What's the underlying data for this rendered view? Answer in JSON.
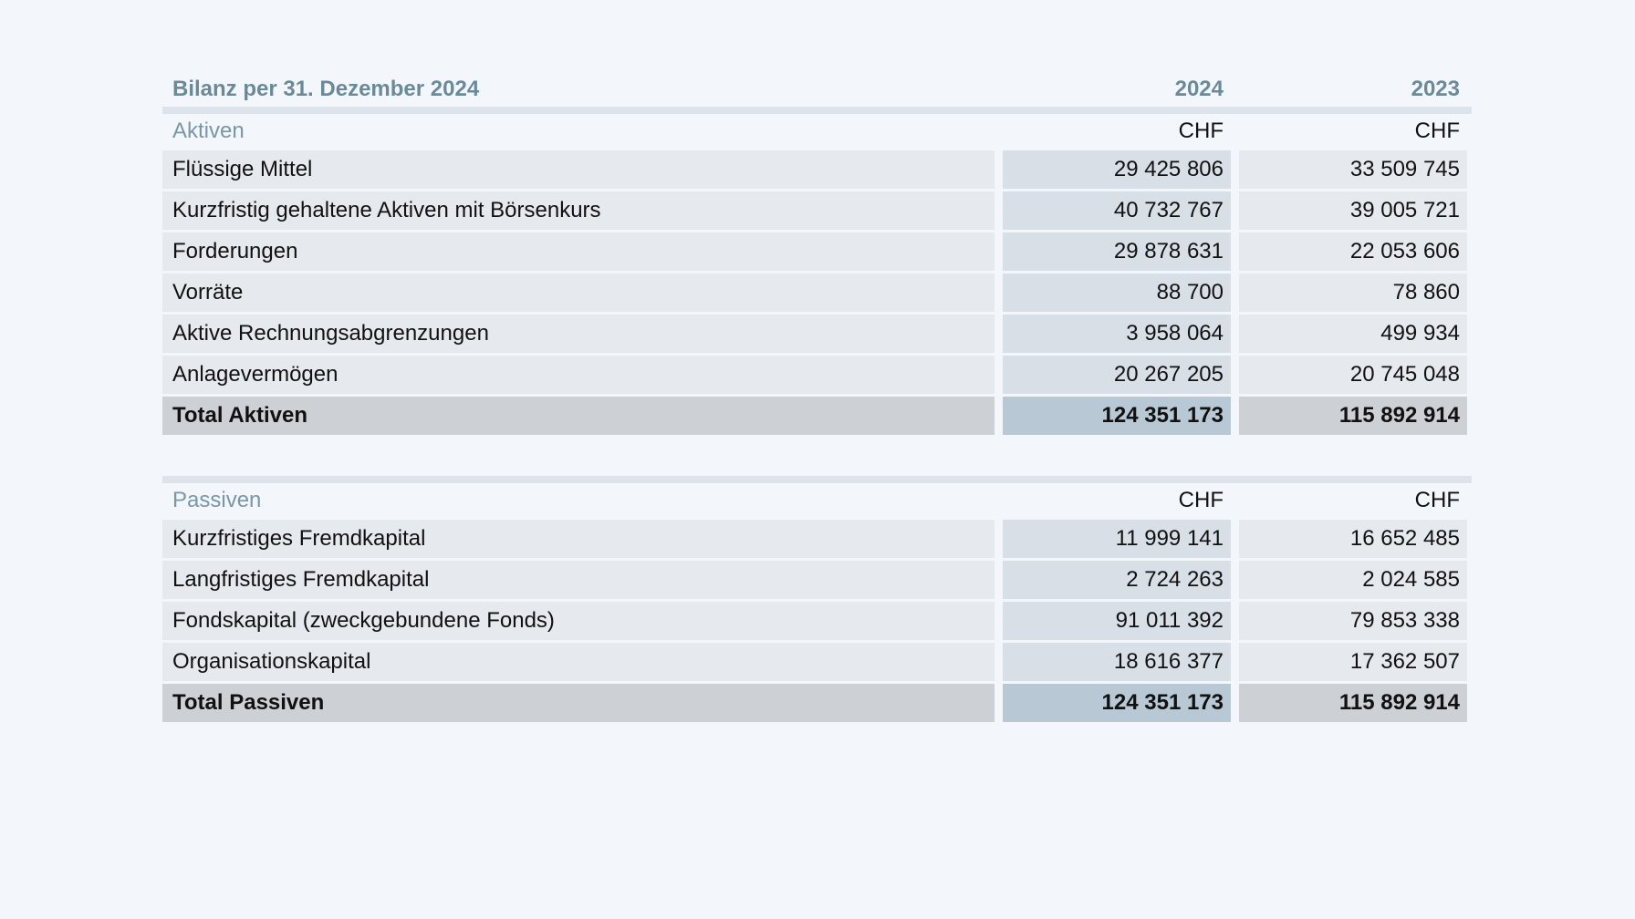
{
  "title": "Bilanz per 31. Dezember 2024",
  "years": [
    "2024",
    "2023"
  ],
  "aktiven": {
    "label": "Aktiven",
    "currency": [
      "CHF",
      "CHF"
    ],
    "rows": [
      {
        "label": "Flüssige Mittel",
        "y2024": "29 425 806",
        "y2023": "33 509 745"
      },
      {
        "label": "Kurzfristig gehaltene Aktiven mit Börsenkurs",
        "y2024": "40 732 767",
        "y2023": "39 005 721"
      },
      {
        "label": "Forderungen",
        "y2024": "29 878 631",
        "y2023": "22 053 606"
      },
      {
        "label": "Vorräte",
        "y2024": "88 700",
        "y2023": "78 860"
      },
      {
        "label": "Aktive Rechnungsabgrenzungen",
        "y2024": "3 958 064",
        "y2023": "499 934"
      },
      {
        "label": "Anlagevermögen",
        "y2024": "20 267 205",
        "y2023": "20 745 048"
      }
    ],
    "total": {
      "label": "Total Aktiven",
      "y2024": "124 351 173",
      "y2023": "115 892 914"
    }
  },
  "passiven": {
    "label": "Passiven",
    "currency": [
      "CHF",
      "CHF"
    ],
    "rows": [
      {
        "label": "Kurzfristiges Fremdkapital",
        "y2024": "11 999 141",
        "y2023": "16 652 485"
      },
      {
        "label": "Langfristiges Fremdkapital",
        "y2024": "2 724 263",
        "y2023": "2 024 585"
      },
      {
        "label": "Fondskapital (zweckgebundene Fonds)",
        "y2024": "91 011 392",
        "y2023": "79 853 338"
      },
      {
        "label": "Organisationskapital",
        "y2024": "18 616 377",
        "y2023": "17 362 507"
      }
    ],
    "total": {
      "label": "Total Passiven",
      "y2024": "124 351 173",
      "y2023": "115 892 914"
    }
  }
}
